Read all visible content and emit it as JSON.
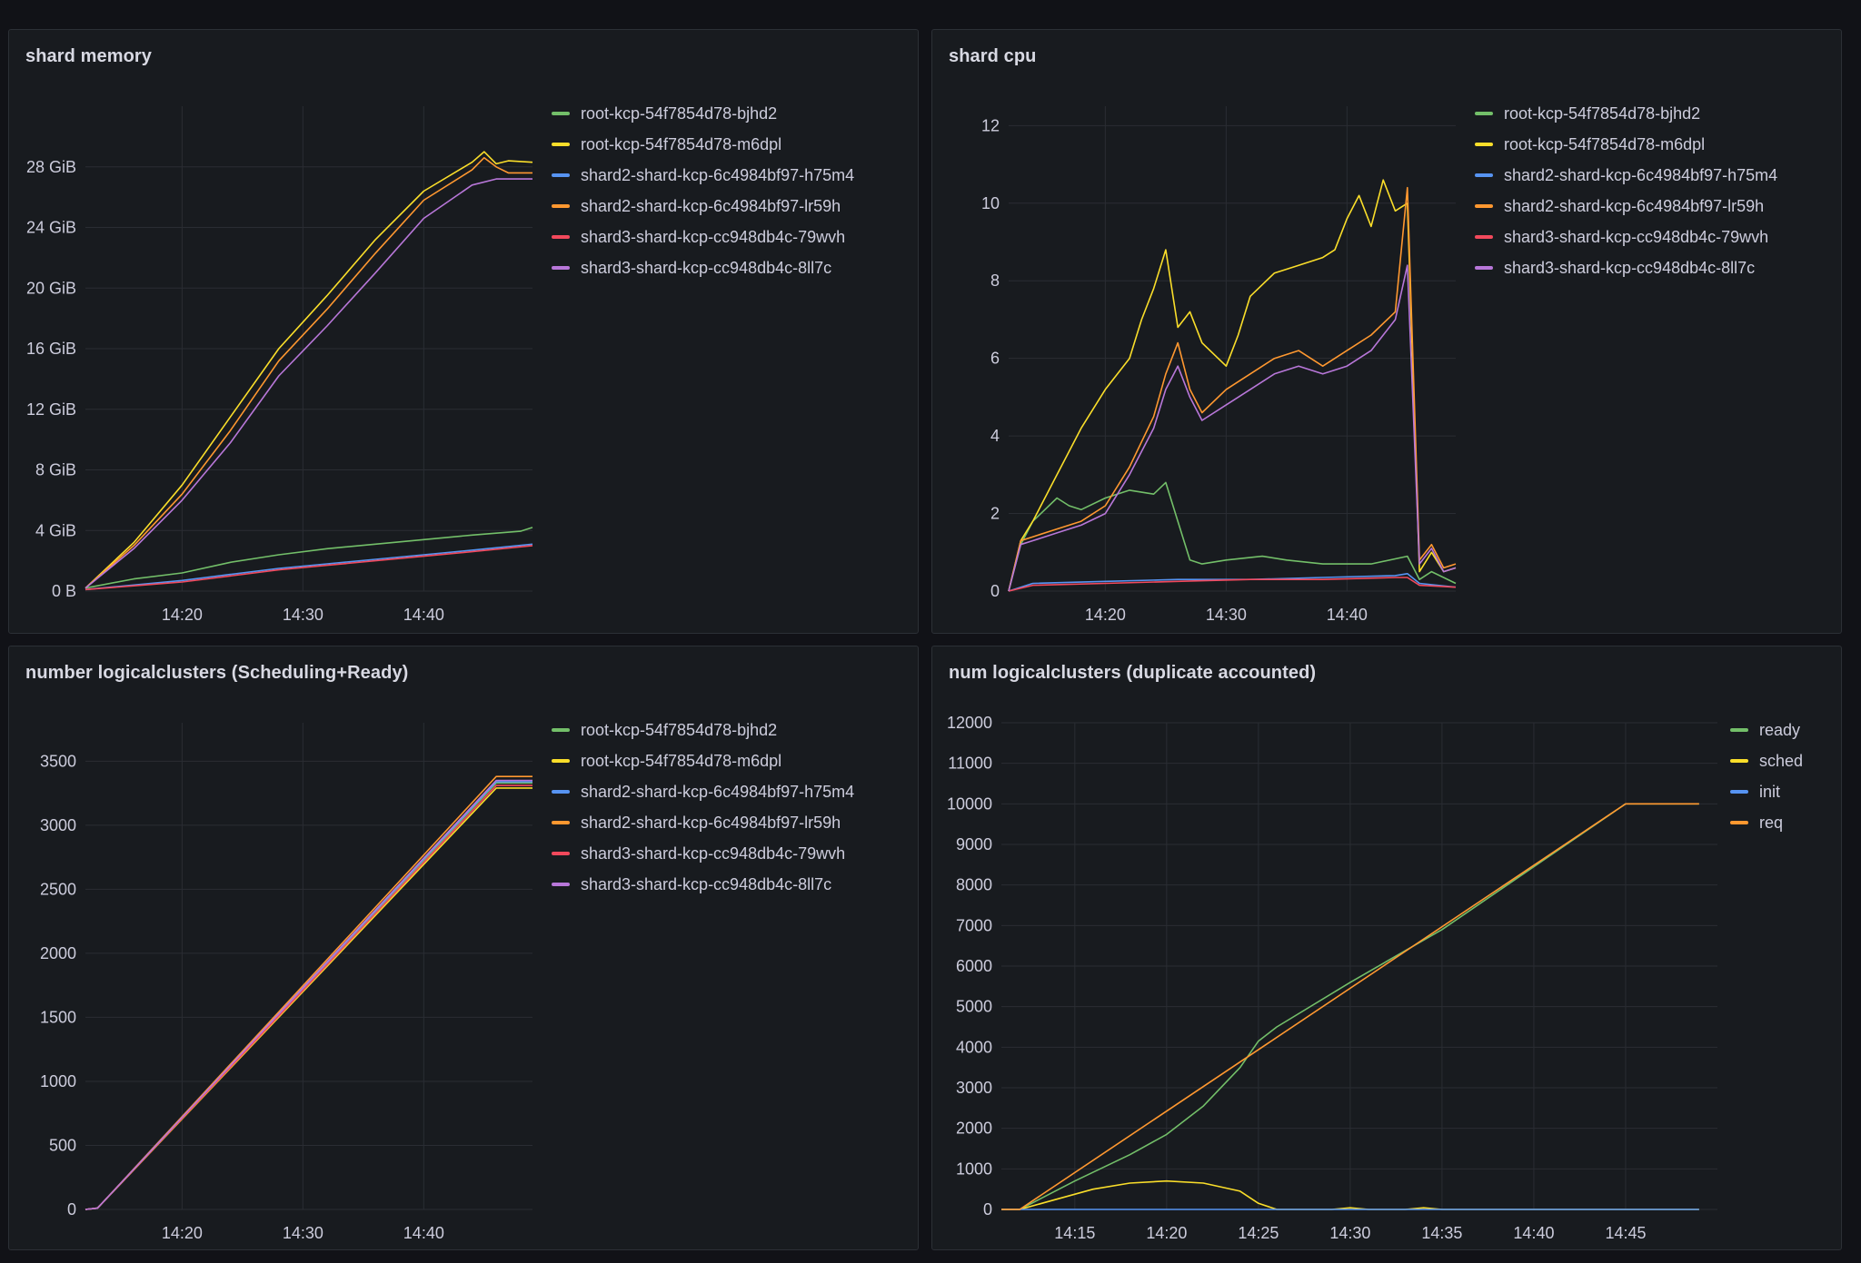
{
  "dashboard": {
    "panels": [
      {
        "id": "memory",
        "title": "shard memory",
        "chart_data": {
          "type": "line",
          "xlabel": "",
          "ylabel": "",
          "xlim": [
            "14:12",
            "14:49"
          ],
          "x_ticks": [
            "14:20",
            "14:30",
            "14:40"
          ],
          "ylim": [
            0,
            32
          ],
          "y_ticks": [
            0,
            4,
            8,
            12,
            16,
            20,
            24,
            28
          ],
          "y_tick_labels": [
            "0 B",
            "4 GiB",
            "8 GiB",
            "12 GiB",
            "16 GiB",
            "20 GiB",
            "24 GiB",
            "28 GiB"
          ],
          "y_unit": "GiB",
          "legend_position": "right",
          "series": [
            {
              "name": "root-kcp-54f7854d78-bjhd2",
              "color": "#73bf69",
              "x": [
                "14:12",
                "14:16",
                "14:20",
                "14:24",
                "14:28",
                "14:32",
                "14:36",
                "14:40",
                "14:44",
                "14:48",
                "14:49"
              ],
              "y": [
                0.2,
                0.8,
                1.2,
                1.9,
                2.4,
                2.8,
                3.1,
                3.4,
                3.7,
                3.95,
                4.2
              ]
            },
            {
              "name": "root-kcp-54f7854d78-m6dpl",
              "color": "#fade2a",
              "x": [
                "14:12",
                "14:16",
                "14:20",
                "14:24",
                "14:28",
                "14:32",
                "14:36",
                "14:40",
                "14:44",
                "14:45",
                "14:46",
                "14:47",
                "14:49"
              ],
              "y": [
                0.2,
                3.2,
                7.0,
                11.5,
                16.0,
                19.5,
                23.2,
                26.4,
                28.3,
                29.0,
                28.2,
                28.4,
                28.3
              ]
            },
            {
              "name": "shard2-shard-kcp-6c4984bf97-h75m4",
              "color": "#5794f2",
              "x": [
                "14:12",
                "14:16",
                "14:20",
                "14:24",
                "14:28",
                "14:32",
                "14:36",
                "14:40",
                "14:44",
                "14:49"
              ],
              "y": [
                0.1,
                0.4,
                0.7,
                1.1,
                1.5,
                1.8,
                2.1,
                2.4,
                2.7,
                3.1
              ]
            },
            {
              "name": "shard2-shard-kcp-6c4984bf97-lr59h",
              "color": "#ff9830",
              "x": [
                "14:12",
                "14:16",
                "14:20",
                "14:24",
                "14:28",
                "14:32",
                "14:36",
                "14:40",
                "14:44",
                "14:45",
                "14:46",
                "14:47",
                "14:49"
              ],
              "y": [
                0.2,
                3.0,
                6.4,
                10.6,
                15.2,
                18.6,
                22.3,
                25.8,
                27.8,
                28.6,
                28.0,
                27.6,
                27.6
              ]
            },
            {
              "name": "shard3-shard-kcp-cc948db4c-79wvh",
              "color": "#f2495c",
              "x": [
                "14:12",
                "14:16",
                "14:20",
                "14:24",
                "14:28",
                "14:32",
                "14:36",
                "14:40",
                "14:44",
                "14:49"
              ],
              "y": [
                0.1,
                0.35,
                0.6,
                1.0,
                1.4,
                1.7,
                2.0,
                2.3,
                2.6,
                3.0
              ]
            },
            {
              "name": "shard3-shard-kcp-cc948db4c-8ll7c",
              "color": "#b877d9",
              "x": [
                "14:12",
                "14:16",
                "14:20",
                "14:24",
                "14:28",
                "14:32",
                "14:36",
                "14:40",
                "14:44",
                "14:46",
                "14:49"
              ],
              "y": [
                0.2,
                2.8,
                6.0,
                9.8,
                14.2,
                17.5,
                21.0,
                24.6,
                26.8,
                27.2,
                27.2
              ]
            }
          ]
        }
      },
      {
        "id": "cpu",
        "title": "shard cpu",
        "chart_data": {
          "type": "line",
          "xlabel": "",
          "ylabel": "",
          "xlim": [
            "14:12",
            "14:49"
          ],
          "x_ticks": [
            "14:20",
            "14:30",
            "14:40"
          ],
          "ylim": [
            0,
            12.5
          ],
          "y_ticks": [
            0,
            2,
            4,
            6,
            8,
            10,
            12
          ],
          "y_tick_labels": [
            "0",
            "2",
            "4",
            "6",
            "8",
            "10",
            "12"
          ],
          "legend_position": "right",
          "series": [
            {
              "name": "root-kcp-54f7854d78-bjhd2",
              "color": "#73bf69",
              "x": [
                "14:12",
                "14:13",
                "14:14",
                "14:16",
                "14:17",
                "14:18",
                "14:20",
                "14:22",
                "14:24",
                "14:25",
                "14:26",
                "14:27",
                "14:28",
                "14:30",
                "14:33",
                "14:35",
                "14:38",
                "14:42",
                "14:45",
                "14:46",
                "14:47",
                "14:49"
              ],
              "y": [
                0,
                1.2,
                1.8,
                2.4,
                2.2,
                2.1,
                2.4,
                2.6,
                2.5,
                2.8,
                1.8,
                0.8,
                0.7,
                0.8,
                0.9,
                0.8,
                0.7,
                0.7,
                0.9,
                0.3,
                0.5,
                0.2
              ]
            },
            {
              "name": "root-kcp-54f7854d78-m6dpl",
              "color": "#fade2a",
              "x": [
                "14:12",
                "14:13",
                "14:14",
                "14:16",
                "14:18",
                "14:20",
                "14:22",
                "14:23",
                "14:24",
                "14:25",
                "14:26",
                "14:27",
                "14:28",
                "14:30",
                "14:31",
                "14:32",
                "14:34",
                "14:36",
                "14:38",
                "14:39",
                "14:40",
                "14:41",
                "14:42",
                "14:43",
                "14:44",
                "14:45",
                "14:46",
                "14:47",
                "14:48",
                "14:49"
              ],
              "y": [
                0,
                1.3,
                1.8,
                3.0,
                4.2,
                5.2,
                6.0,
                7.0,
                7.8,
                8.8,
                6.8,
                7.2,
                6.4,
                5.8,
                6.6,
                7.6,
                8.2,
                8.4,
                8.6,
                8.8,
                9.6,
                10.2,
                9.4,
                10.6,
                9.8,
                10.0,
                0.5,
                1.0,
                0.5,
                0.6
              ]
            },
            {
              "name": "shard2-shard-kcp-6c4984bf97-h75m4",
              "color": "#5794f2",
              "x": [
                "14:12",
                "14:14",
                "14:20",
                "14:26",
                "14:32",
                "14:38",
                "14:44",
                "14:45",
                "14:46",
                "14:49"
              ],
              "y": [
                0,
                0.2,
                0.25,
                0.3,
                0.3,
                0.35,
                0.4,
                0.45,
                0.2,
                0.1
              ]
            },
            {
              "name": "shard2-shard-kcp-6c4984bf97-lr59h",
              "color": "#ff9830",
              "x": [
                "14:12",
                "14:13",
                "14:14",
                "14:16",
                "14:18",
                "14:20",
                "14:22",
                "14:24",
                "14:25",
                "14:26",
                "14:27",
                "14:28",
                "14:30",
                "14:32",
                "14:34",
                "14:36",
                "14:38",
                "14:40",
                "14:42",
                "14:44",
                "14:45",
                "14:46",
                "14:47",
                "14:48",
                "14:49"
              ],
              "y": [
                0,
                1.3,
                1.4,
                1.6,
                1.8,
                2.2,
                3.2,
                4.5,
                5.6,
                6.4,
                5.2,
                4.6,
                5.2,
                5.6,
                6.0,
                6.2,
                5.8,
                6.2,
                6.6,
                7.2,
                10.4,
                0.8,
                1.2,
                0.6,
                0.7
              ]
            },
            {
              "name": "shard3-shard-kcp-cc948db4c-79wvh",
              "color": "#f2495c",
              "x": [
                "14:12",
                "14:14",
                "14:20",
                "14:26",
                "14:32",
                "14:38",
                "14:44",
                "14:45",
                "14:46",
                "14:49"
              ],
              "y": [
                0,
                0.15,
                0.2,
                0.25,
                0.3,
                0.3,
                0.35,
                0.35,
                0.15,
                0.1
              ]
            },
            {
              "name": "shard3-shard-kcp-cc948db4c-8ll7c",
              "color": "#b877d9",
              "x": [
                "14:12",
                "14:13",
                "14:14",
                "14:16",
                "14:18",
                "14:20",
                "14:22",
                "14:24",
                "14:25",
                "14:26",
                "14:27",
                "14:28",
                "14:30",
                "14:32",
                "14:34",
                "14:36",
                "14:38",
                "14:40",
                "14:42",
                "14:44",
                "14:45",
                "14:46",
                "14:47",
                "14:48",
                "14:49"
              ],
              "y": [
                0,
                1.2,
                1.3,
                1.5,
                1.7,
                2.0,
                3.0,
                4.2,
                5.2,
                5.8,
                5.0,
                4.4,
                4.8,
                5.2,
                5.6,
                5.8,
                5.6,
                5.8,
                6.2,
                7.0,
                8.4,
                0.7,
                1.1,
                0.5,
                0.6
              ]
            }
          ]
        }
      },
      {
        "id": "logicalclusters",
        "title": "number logicalclusters (Scheduling+Ready)",
        "chart_data": {
          "type": "line",
          "xlabel": "",
          "ylabel": "",
          "xlim": [
            "14:12",
            "14:49"
          ],
          "x_ticks": [
            "14:20",
            "14:30",
            "14:40"
          ],
          "ylim": [
            0,
            3800
          ],
          "y_ticks": [
            0,
            500,
            1000,
            1500,
            2000,
            2500,
            3000,
            3500
          ],
          "y_tick_labels": [
            "0",
            "500",
            "1000",
            "1500",
            "2000",
            "2500",
            "3000",
            "3500"
          ],
          "legend_position": "right",
          "series": [
            {
              "name": "root-kcp-54f7854d78-bjhd2",
              "color": "#73bf69",
              "x": [
                "14:12",
                "14:13",
                "14:46",
                "14:49"
              ],
              "y": [
                0,
                10,
                3330,
                3330
              ]
            },
            {
              "name": "root-kcp-54f7854d78-m6dpl",
              "color": "#fade2a",
              "x": [
                "14:12",
                "14:13",
                "14:46",
                "14:49"
              ],
              "y": [
                0,
                10,
                3290,
                3290
              ]
            },
            {
              "name": "shard2-shard-kcp-6c4984bf97-h75m4",
              "color": "#5794f2",
              "x": [
                "14:12",
                "14:13",
                "14:46",
                "14:49"
              ],
              "y": [
                0,
                10,
                3340,
                3340
              ]
            },
            {
              "name": "shard2-shard-kcp-6c4984bf97-lr59h",
              "color": "#ff9830",
              "x": [
                "14:12",
                "14:13",
                "14:46",
                "14:49"
              ],
              "y": [
                0,
                10,
                3380,
                3380
              ]
            },
            {
              "name": "shard3-shard-kcp-cc948db4c-79wvh",
              "color": "#f2495c",
              "x": [
                "14:12",
                "14:13",
                "14:46",
                "14:49"
              ],
              "y": [
                0,
                10,
                3310,
                3310
              ]
            },
            {
              "name": "shard3-shard-kcp-cc948db4c-8ll7c",
              "color": "#b877d9",
              "x": [
                "14:12",
                "14:13",
                "14:46",
                "14:49"
              ],
              "y": [
                0,
                10,
                3350,
                3350
              ]
            }
          ]
        }
      },
      {
        "id": "num-logicalclusters",
        "title": "num logicalclusters (duplicate accounted)",
        "chart_data": {
          "type": "line",
          "xlabel": "",
          "ylabel": "",
          "xlim": [
            "14:11",
            "14:50"
          ],
          "x_ticks": [
            "14:15",
            "14:20",
            "14:25",
            "14:30",
            "14:35",
            "14:40",
            "14:45"
          ],
          "ylim": [
            0,
            12000
          ],
          "y_ticks": [
            0,
            1000,
            2000,
            3000,
            4000,
            5000,
            6000,
            7000,
            8000,
            9000,
            10000,
            11000,
            12000
          ],
          "y_tick_labels": [
            "0",
            "1000",
            "2000",
            "3000",
            "4000",
            "5000",
            "6000",
            "7000",
            "8000",
            "9000",
            "10000",
            "11000",
            "12000"
          ],
          "legend_position": "right",
          "series": [
            {
              "name": "ready",
              "color": "#73bf69",
              "x": [
                "14:11",
                "14:12",
                "14:15",
                "14:18",
                "14:20",
                "14:22",
                "14:24",
                "14:25",
                "14:26",
                "14:30",
                "14:35",
                "14:40",
                "14:45",
                "14:49"
              ],
              "y": [
                0,
                0,
                700,
                1350,
                1850,
                2550,
                3500,
                4150,
                4500,
                5600,
                6900,
                8450,
                10000,
                10000
              ]
            },
            {
              "name": "sched",
              "color": "#fade2a",
              "x": [
                "14:11",
                "14:12",
                "14:14",
                "14:16",
                "14:18",
                "14:20",
                "14:22",
                "14:24",
                "14:25",
                "14:26",
                "14:29",
                "14:30",
                "14:31",
                "14:33",
                "14:34",
                "14:35",
                "14:49"
              ],
              "y": [
                0,
                0,
                250,
                500,
                650,
                700,
                650,
                450,
                150,
                0,
                0,
                40,
                0,
                0,
                40,
                0,
                0
              ]
            },
            {
              "name": "init",
              "color": "#5794f2",
              "x": [
                "14:11",
                "14:49"
              ],
              "y": [
                0,
                0
              ]
            },
            {
              "name": "req",
              "color": "#ff9830",
              "x": [
                "14:11",
                "14:12",
                "14:45",
                "14:49"
              ],
              "y": [
                0,
                0,
                10000,
                10000
              ]
            }
          ]
        }
      }
    ]
  }
}
